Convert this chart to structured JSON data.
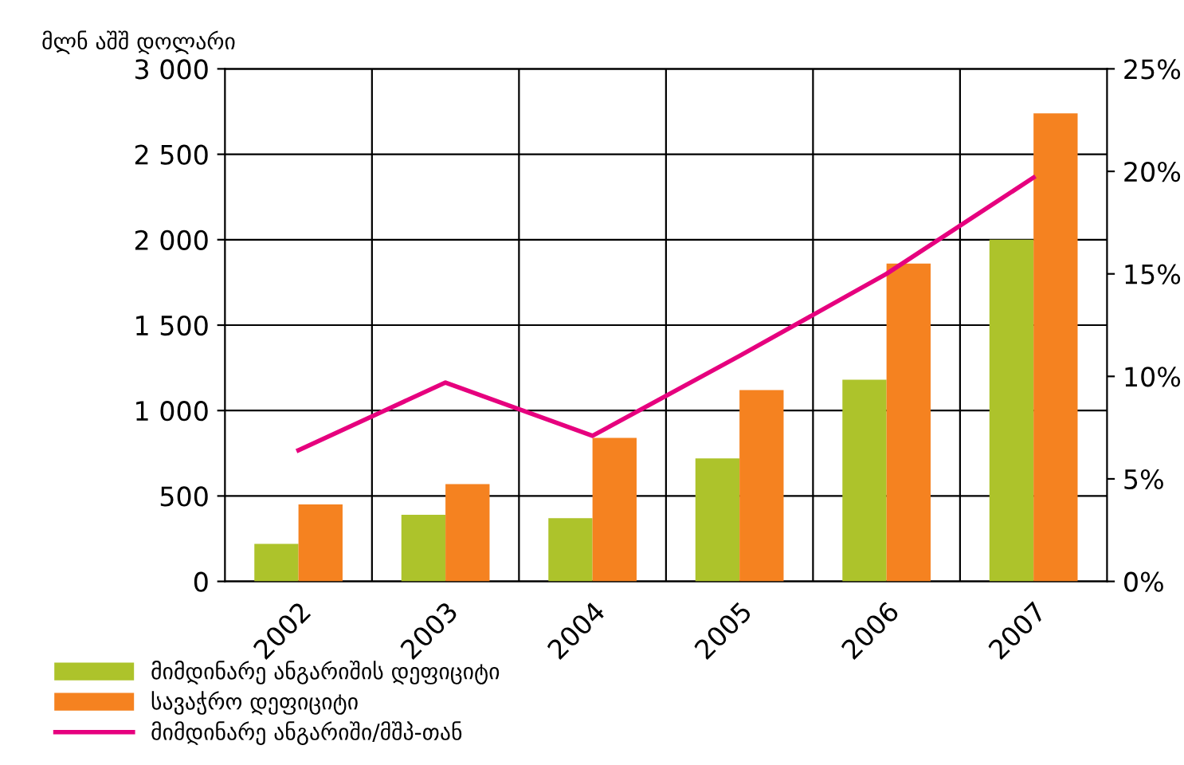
{
  "chart_data": {
    "type": "bar",
    "ylabel": "მლნ აშშ დოლარი",
    "categories": [
      "2002",
      "2003",
      "2004",
      "2005",
      "2006",
      "2007"
    ],
    "series": [
      {
        "name": "მიმდინარე ანგარიშის დეფიციტი",
        "color": "#adc32b",
        "values": [
          220,
          390,
          370,
          720,
          1180,
          2000
        ]
      },
      {
        "name": "სავაჭრო დეფიციტი",
        "color": "#f58220",
        "values": [
          450,
          570,
          840,
          1120,
          1860,
          2740
        ]
      },
      {
        "name": "მიმდინარე ანგარიში/მშპ-თან",
        "type": "line",
        "axis": "y2",
        "color": "#e6007e",
        "values": [
          6.4,
          9.7,
          7.1,
          11.0,
          15.0,
          19.7
        ]
      }
    ],
    "ylim": [
      0,
      3000
    ],
    "yticks": [
      0,
      500,
      {
        "value": 1000,
        "label": "1 000"
      },
      {
        "value": 1500,
        "label": "1 500"
      },
      {
        "value": 2000,
        "label": "2 000"
      },
      {
        "value": 2500,
        "label": "2 500"
      },
      {
        "value": 3000,
        "label": "3 000"
      }
    ],
    "y2lim": [
      0,
      25
    ],
    "y2ticks": [
      {
        "value": 0,
        "label": "0%"
      },
      {
        "value": 5,
        "label": "5%"
      },
      {
        "value": 10,
        "label": "10%"
      },
      {
        "value": 15,
        "label": "15%"
      },
      {
        "value": 20,
        "label": "20%"
      },
      {
        "value": 25,
        "label": "25%"
      }
    ],
    "grid": true,
    "legend": "bottom left",
    "marker": "none",
    "line_style": "solid"
  }
}
